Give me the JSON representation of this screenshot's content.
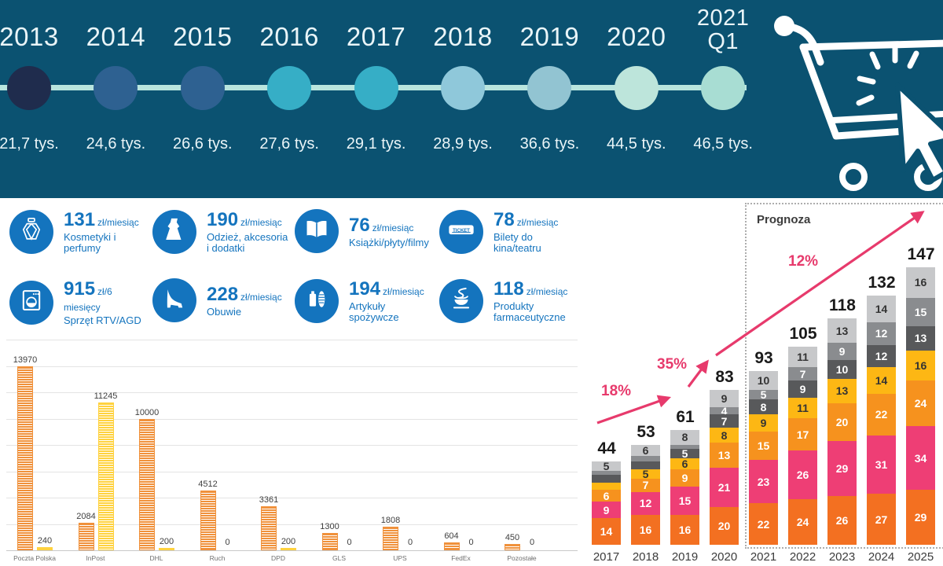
{
  "colors": {
    "banner_bg": "#0B5271",
    "accent_blue": "#1474BE",
    "accent_pink": "#E73A6C",
    "timeline_line": "#B9E5DE"
  },
  "banner": {
    "cart_icon": "shopping-cart-click-icon",
    "timeline": [
      {
        "year": "2013",
        "value": "21,7 tys.",
        "dot_color": "#1F2C4D"
      },
      {
        "year": "2014",
        "value": "24,6 tys.",
        "dot_color": "#2E6191"
      },
      {
        "year": "2015",
        "value": "26,6 tys.",
        "dot_color": "#2E6191"
      },
      {
        "year": "2016",
        "value": "27,6 tys.",
        "dot_color": "#36AEC6"
      },
      {
        "year": "2017",
        "value": "29,1 tys.",
        "dot_color": "#36AEC6"
      },
      {
        "year": "2018",
        "value": "28,9 tys.",
        "dot_color": "#8FC8DA"
      },
      {
        "year": "2019",
        "value": "36,6 tys.",
        "dot_color": "#92C4D2"
      },
      {
        "year": "2020",
        "value": "44,5 tys.",
        "dot_color": "#BDE5DB"
      },
      {
        "year": "2021",
        "quarter": "Q1",
        "value": "46,5 tys.",
        "dot_color": "#A8DDD3"
      }
    ]
  },
  "categories": [
    {
      "icon": "perfume-icon",
      "amount": "131",
      "unit": "zł/miesiąc",
      "label": "Kosmetyki i perfumy"
    },
    {
      "icon": "dress-icon",
      "amount": "190",
      "unit": "zł/miesiąc",
      "label": "Odzież, akcesoria\ni dodatki"
    },
    {
      "icon": "book-icon",
      "amount": "76",
      "unit": "zł/miesiąc",
      "label": "Książki/płyty/filmy"
    },
    {
      "icon": "ticket-icon",
      "amount": "78",
      "unit": "zł/miesiąc",
      "label": "Bilety do kina/teatru"
    },
    {
      "icon": "washer-icon",
      "amount": "915",
      "unit": "zł/6 miesięcy",
      "label": "Sprzęt RTV/AGD"
    },
    {
      "icon": "heel-icon",
      "amount": "228",
      "unit": "zł/miesiąc",
      "label": "Obuwie"
    },
    {
      "icon": "grocery-icon",
      "amount": "194",
      "unit": "zł/miesiąc",
      "label": "Artykuły spożywcze"
    },
    {
      "icon": "pharmacy-icon",
      "amount": "118",
      "unit": "zł/miesiąc",
      "label": "Produkty\nfarmaceutyczne"
    }
  ],
  "chart_data": [
    {
      "type": "bar",
      "categories": [
        "Poczta Polska",
        "InPost",
        "DHL",
        "Ruch",
        "DPD",
        "GLS",
        "UPS",
        "FedEx",
        "Pozostałe"
      ],
      "series": [
        {
          "name": "orange-striped",
          "color": "#F0913B",
          "values": [
            13970,
            2084,
            10000,
            4512,
            3361,
            1300,
            1808,
            604,
            450
          ]
        },
        {
          "name": "yellow-striped",
          "color": "#FFD23F",
          "values": [
            240,
            11245,
            200,
            0,
            200,
            0,
            0,
            0,
            0
          ]
        }
      ],
      "ylim": [
        0,
        16000
      ],
      "grid_step": 2000,
      "grid": true,
      "legend": false
    },
    {
      "type": "stacked-bar",
      "categories": [
        "2017",
        "2018",
        "2019",
        "2020",
        "2021",
        "2022",
        "2023",
        "2024",
        "2025"
      ],
      "totals": [
        44,
        53,
        61,
        83,
        93,
        105,
        118,
        132,
        147
      ],
      "segments_bottom_to_top": [
        {
          "name": "segment-1",
          "color": "#F37021"
        },
        {
          "name": "segment-2",
          "color": "#EE3E75"
        },
        {
          "name": "segment-3",
          "color": "#F6921E"
        },
        {
          "name": "segment-4",
          "color": "#FDB714"
        },
        {
          "name": "segment-5",
          "color": "#58595B"
        },
        {
          "name": "segment-6",
          "color": "#8A8C8F"
        },
        {
          "name": "segment-7",
          "color": "#C7C8CA"
        }
      ],
      "stacks": [
        {
          "values": [
            14,
            9,
            6,
            4,
            4,
            2,
            5
          ],
          "labels": [
            "14",
            "9",
            "6",
            "",
            "",
            "",
            "5"
          ]
        },
        {
          "values": [
            16,
            12,
            7,
            5,
            4,
            3,
            6
          ],
          "labels": [
            "16",
            "12",
            "7",
            "5",
            "",
            "",
            "6"
          ]
        },
        {
          "values": [
            16,
            15,
            9,
            6,
            5,
            2,
            8
          ],
          "labels": [
            "16",
            "15",
            "9",
            "6",
            "5",
            "",
            "8"
          ]
        },
        {
          "values": [
            20,
            21,
            13,
            8,
            7,
            4,
            9
          ],
          "labels": [
            "20",
            "21",
            "13",
            "8",
            "7",
            "4",
            "9"
          ]
        },
        {
          "values": [
            22,
            23,
            15,
            9,
            8,
            5,
            10
          ],
          "labels": [
            "22",
            "23",
            "15",
            "9",
            "8",
            "5",
            "10"
          ]
        },
        {
          "values": [
            24,
            26,
            17,
            11,
            9,
            7,
            11
          ],
          "labels": [
            "24",
            "26",
            "17",
            "11",
            "9",
            "7",
            "11"
          ]
        },
        {
          "values": [
            26,
            29,
            20,
            13,
            10,
            9,
            13
          ],
          "labels": [
            "26",
            "29",
            "20",
            "13",
            "10",
            "9",
            "13"
          ]
        },
        {
          "values": [
            27,
            31,
            22,
            14,
            12,
            12,
            14
          ],
          "labels": [
            "27",
            "31",
            "22",
            "14",
            "12",
            "12",
            "14"
          ]
        },
        {
          "values": [
            29,
            34,
            24,
            16,
            13,
            15,
            16
          ],
          "labels": [
            "29",
            "34",
            "24",
            "16",
            "13",
            "15",
            "16"
          ]
        }
      ],
      "prognoza_label": "Prognoza",
      "growth": [
        {
          "text": "18%"
        },
        {
          "text": "35%"
        },
        {
          "text": "12%"
        }
      ],
      "legend": false
    }
  ]
}
